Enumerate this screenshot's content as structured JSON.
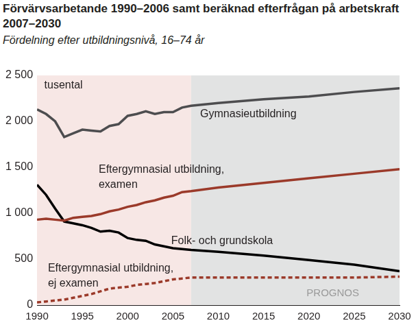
{
  "chart_data": {
    "type": "line",
    "title": "Förvärvsarbetande 1990–2006 samt beräknad efterfrågan på arbetskraft 2007–2030",
    "subtitle": "Fördelning efter utbildningsnivå, 16–74 år",
    "ylabel": "tusental",
    "x": [
      1990,
      1991,
      1992,
      1993,
      1994,
      1995,
      1996,
      1997,
      1998,
      1999,
      2000,
      2001,
      2002,
      2003,
      2004,
      2005,
      2006,
      2007,
      2010,
      2015,
      2020,
      2025,
      2030
    ],
    "series": [
      {
        "name": "Gymnasieutbildning",
        "color": "#4d4d4f",
        "line_style": "solid",
        "values": [
          2130,
          2080,
          2000,
          1830,
          1870,
          1910,
          1900,
          1890,
          1950,
          1970,
          2060,
          2080,
          2110,
          2080,
          2100,
          2100,
          2150,
          2170,
          2200,
          2240,
          2270,
          2320,
          2360
        ]
      },
      {
        "name": "Eftergymnasial utbildning, examen",
        "color": "#9b3a2a",
        "line_style": "solid",
        "values": [
          930,
          940,
          930,
          920,
          950,
          960,
          970,
          990,
          1020,
          1040,
          1070,
          1090,
          1120,
          1140,
          1170,
          1190,
          1230,
          1240,
          1280,
          1330,
          1380,
          1430,
          1480
        ]
      },
      {
        "name": "Folk- och grundskola",
        "color": "#000000",
        "line_style": "solid",
        "values": [
          1310,
          1200,
          1050,
          910,
          890,
          870,
          840,
          800,
          810,
          790,
          730,
          710,
          700,
          660,
          640,
          620,
          610,
          600,
          580,
          540,
          490,
          440,
          370
        ]
      },
      {
        "name": "Eftergymnasial utbildning, ej examen",
        "color": "#9b3a2a",
        "line_style": "dashed",
        "values": [
          30,
          40,
          50,
          60,
          80,
          100,
          120,
          150,
          180,
          190,
          200,
          220,
          230,
          240,
          260,
          280,
          290,
          300,
          300,
          300,
          300,
          300,
          310
        ]
      }
    ],
    "shaded_regions": [
      {
        "from": 1990,
        "to": 2007,
        "color": "#f7e7e5"
      },
      {
        "from": 2007,
        "to": 2030,
        "color": "#e2e3e3",
        "label": "PROGNOS"
      }
    ],
    "xlim": [
      1990,
      2030
    ],
    "xticks": [
      1990,
      1995,
      2000,
      2005,
      2010,
      2015,
      2020,
      2025,
      2030
    ],
    "ylim": [
      0,
      2500
    ],
    "yticks": [
      0,
      500,
      {
        "value": 1000,
        "label": "1 000"
      },
      {
        "value": 1500,
        "label": "1 500"
      },
      {
        "value": 2000,
        "label": "2 000"
      },
      {
        "value": 2500,
        "label": "2 500"
      }
    ],
    "grid": false
  }
}
